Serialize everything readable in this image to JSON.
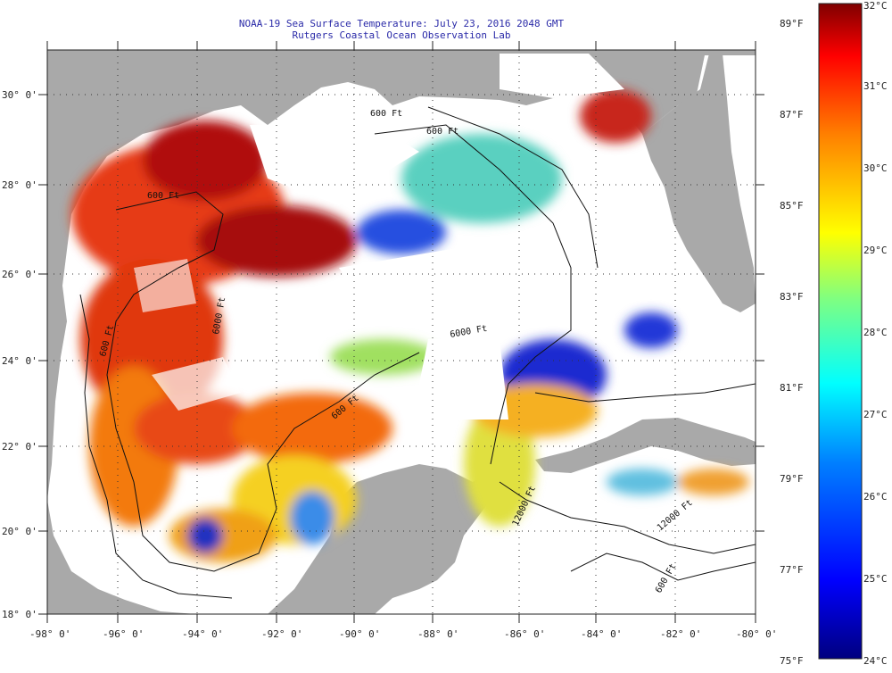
{
  "title": "NOAA-19 Sea Surface Temperature:  July 23, 2016 2048 GMT",
  "subtitle": "Rutgers Coastal Ocean Observation Lab",
  "axes": {
    "lat_labels": [
      "30° 0'",
      "28° 0'",
      "26° 0'",
      "24° 0'",
      "22° 0'",
      "20° 0'",
      "18° 0'"
    ],
    "lon_labels": [
      "-98° 0'",
      "-96° 0'",
      "-94° 0'",
      "-92° 0'",
      "-90° 0'",
      "-88° 0'",
      "-86° 0'",
      "-84° 0'",
      "-82° 0'",
      "-80° 0'"
    ]
  },
  "contours": {
    "labels": [
      "600 Ft",
      "600 Ft",
      "600 Ft",
      "600 Ft",
      "600 Ft",
      "6000 Ft",
      "6000 Ft",
      "12000 Ft",
      "12000 Ft",
      "600 Ft"
    ]
  },
  "colorbar": {
    "celsius_labels": [
      "32°C",
      "31°C",
      "30°C",
      "29°C",
      "28°C",
      "27°C",
      "26°C",
      "25°C",
      "24°C"
    ],
    "fahrenheit_labels": [
      "89°F",
      "87°F",
      "85°F",
      "83°F",
      "81°F",
      "79°F",
      "77°F",
      "75°F"
    ],
    "colors": [
      "#00007f",
      "#0000ff",
      "#0080ff",
      "#00ffff",
      "#80ff80",
      "#ffff00",
      "#ff8000",
      "#ff0000",
      "#7f0000"
    ]
  },
  "map_colors": {
    "land": "#a9a9a9",
    "cloud": "#ffffff"
  }
}
